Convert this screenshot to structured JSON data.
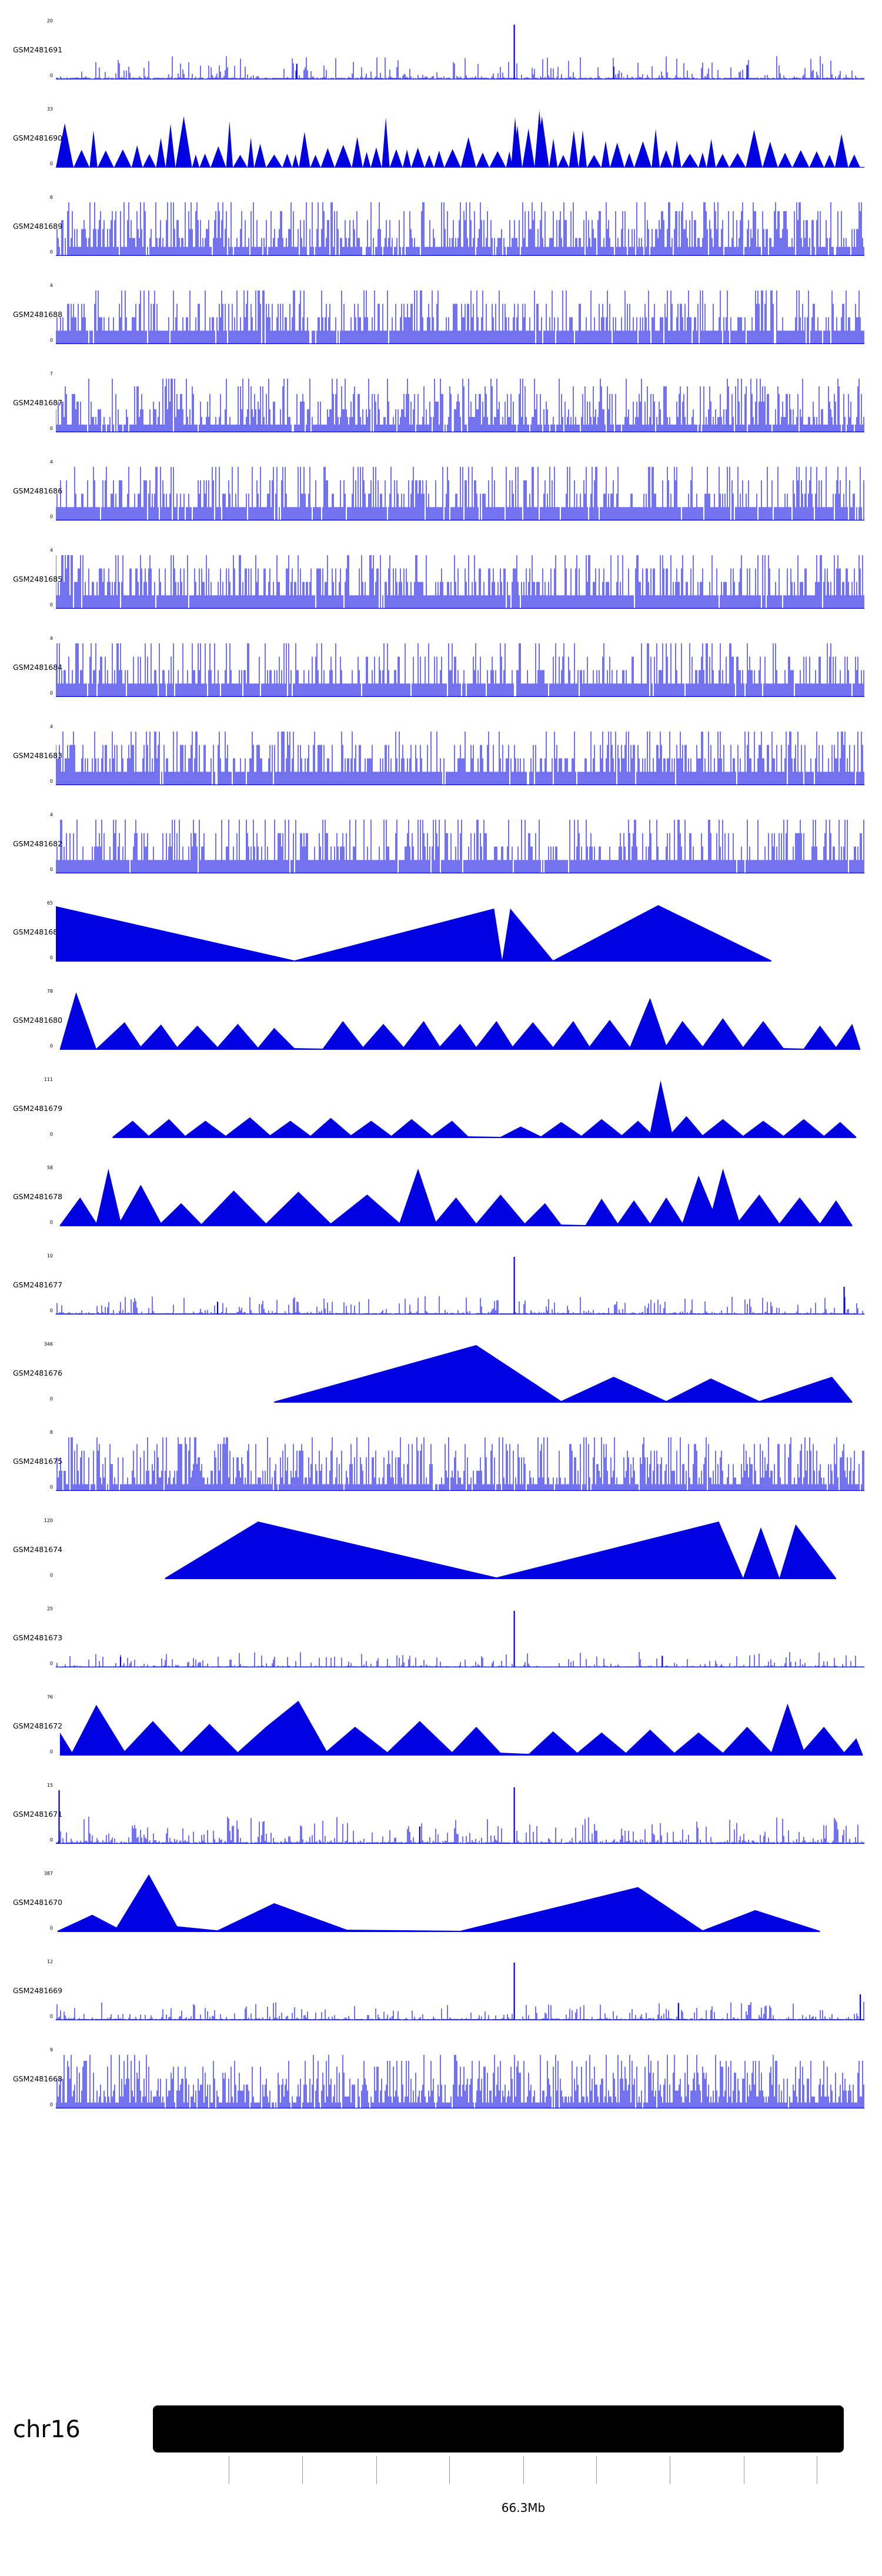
{
  "chart_data": {
    "type": "area",
    "description": "Genome browser signal tracks (coverage) for 24 GEO samples shown over chr16 near 66.3Mb",
    "signal_color": "#0000E0",
    "x_axis": {
      "chromosome": "chr16",
      "center_label": "66.3Mb"
    },
    "tracks": [
      {
        "label": "GSM2481691",
        "ymax": 20,
        "ymin": 0,
        "style": "dense",
        "seed": 101,
        "base": 0.025,
        "pow": 7,
        "hmax": 0.38,
        "zero": 0.15,
        "marks": [
          [
            0.567,
            0.95
          ],
          [
            0.298,
            0.27
          ],
          [
            0.69,
            0.22
          ],
          [
            0.855,
            0.25
          ]
        ]
      },
      {
        "label": "GSM2481690",
        "ymax": 33,
        "ymin": 0,
        "style": "sawtooth",
        "seed": 102,
        "hmin": 0.22,
        "wmin": 0.008,
        "wmax": 0.022,
        "extra": [
          [
            0.598,
            1.0,
            0.012
          ],
          [
            0.568,
            0.88,
            0.01
          ]
        ]
      },
      {
        "label": "GSM2481689",
        "ymax": 6,
        "ymin": 0,
        "style": "dense",
        "seed": 103,
        "levels": 6,
        "pow": 1.9,
        "zero": 0.05
      },
      {
        "label": "GSM2481688",
        "ymax": 4,
        "ymin": 0,
        "style": "dense",
        "seed": 104,
        "levels": 4,
        "pow": 2.4,
        "zero": 0.06
      },
      {
        "label": "GSM2481687",
        "ymax": 7,
        "ymin": 0,
        "style": "dense",
        "seed": 105,
        "levels": 7,
        "pow": 2.2,
        "zero": 0.06
      },
      {
        "label": "GSM2481686",
        "ymax": 4,
        "ymin": 0,
        "style": "dense",
        "seed": 106,
        "levels": 4,
        "pow": 2.6,
        "zero": 0.07
      },
      {
        "label": "GSM2481685",
        "ymax": 4,
        "ymin": 0,
        "style": "dense",
        "seed": 107,
        "levels": 4,
        "pow": 2.0,
        "zero": 0.03
      },
      {
        "label": "GSM2481684",
        "ymax": 4,
        "ymin": 0,
        "style": "dense",
        "seed": 108,
        "levels": 4,
        "pow": 2.4,
        "zero": 0.05
      },
      {
        "label": "GSM2481683",
        "ymax": 4,
        "ymin": 0,
        "style": "dense",
        "seed": 109,
        "levels": 4,
        "pow": 2.0,
        "zero": 0.04
      },
      {
        "label": "GSM2481682",
        "ymax": 4,
        "ymin": 0,
        "style": "dense",
        "seed": 110,
        "levels": 4,
        "pow": 2.3,
        "zero": 0.05
      },
      {
        "label": "GSM2481681",
        "ymax": 65,
        "ymin": 0,
        "style": "peaks",
        "seed": 111,
        "points": [
          [
            0.0,
            0.96
          ],
          [
            0.295,
            0.02
          ],
          [
            0.542,
            0.92
          ],
          [
            0.552,
            0.03
          ],
          [
            0.562,
            0.92
          ],
          [
            0.615,
            0.02
          ],
          [
            0.745,
            0.98
          ],
          [
            0.885,
            0.02
          ]
        ]
      },
      {
        "label": "GSM2481680",
        "ymax": 78,
        "ymin": 0,
        "style": "peaks",
        "seed": 112,
        "points": [
          [
            0.005,
            0.02
          ],
          [
            0.025,
            1.0
          ],
          [
            0.05,
            0.02
          ],
          [
            0.085,
            0.48
          ],
          [
            0.105,
            0.06
          ],
          [
            0.13,
            0.44
          ],
          [
            0.15,
            0.05
          ],
          [
            0.175,
            0.42
          ],
          [
            0.2,
            0.05
          ],
          [
            0.225,
            0.45
          ],
          [
            0.25,
            0.04
          ],
          [
            0.27,
            0.38
          ],
          [
            0.295,
            0.03
          ],
          [
            0.33,
            0.02
          ],
          [
            0.355,
            0.5
          ],
          [
            0.38,
            0.05
          ],
          [
            0.405,
            0.45
          ],
          [
            0.43,
            0.05
          ],
          [
            0.455,
            0.5
          ],
          [
            0.475,
            0.06
          ],
          [
            0.5,
            0.45
          ],
          [
            0.52,
            0.05
          ],
          [
            0.545,
            0.5
          ],
          [
            0.565,
            0.06
          ],
          [
            0.59,
            0.48
          ],
          [
            0.615,
            0.05
          ],
          [
            0.64,
            0.5
          ],
          [
            0.66,
            0.06
          ],
          [
            0.685,
            0.52
          ],
          [
            0.71,
            0.05
          ],
          [
            0.735,
            0.9
          ],
          [
            0.755,
            0.08
          ],
          [
            0.775,
            0.5
          ],
          [
            0.8,
            0.06
          ],
          [
            0.825,
            0.55
          ],
          [
            0.85,
            0.05
          ],
          [
            0.875,
            0.5
          ],
          [
            0.9,
            0.03
          ],
          [
            0.925,
            0.02
          ],
          [
            0.945,
            0.42
          ],
          [
            0.965,
            0.05
          ],
          [
            0.985,
            0.45
          ],
          [
            0.995,
            0.02
          ]
        ]
      },
      {
        "label": "GSM2481679",
        "ymax": 111,
        "ymin": 0,
        "style": "peaks",
        "seed": 113,
        "points": [
          [
            0.07,
            0.02
          ],
          [
            0.095,
            0.3
          ],
          [
            0.115,
            0.04
          ],
          [
            0.14,
            0.33
          ],
          [
            0.16,
            0.04
          ],
          [
            0.185,
            0.3
          ],
          [
            0.21,
            0.04
          ],
          [
            0.24,
            0.36
          ],
          [
            0.265,
            0.05
          ],
          [
            0.29,
            0.3
          ],
          [
            0.315,
            0.04
          ],
          [
            0.34,
            0.35
          ],
          [
            0.365,
            0.05
          ],
          [
            0.39,
            0.3
          ],
          [
            0.415,
            0.04
          ],
          [
            0.44,
            0.33
          ],
          [
            0.465,
            0.04
          ],
          [
            0.49,
            0.3
          ],
          [
            0.51,
            0.03
          ],
          [
            0.55,
            0.02
          ],
          [
            0.575,
            0.2
          ],
          [
            0.6,
            0.03
          ],
          [
            0.625,
            0.28
          ],
          [
            0.65,
            0.04
          ],
          [
            0.675,
            0.33
          ],
          [
            0.7,
            0.05
          ],
          [
            0.72,
            0.3
          ],
          [
            0.735,
            0.1
          ],
          [
            0.748,
            1.0
          ],
          [
            0.762,
            0.1
          ],
          [
            0.78,
            0.38
          ],
          [
            0.8,
            0.05
          ],
          [
            0.825,
            0.33
          ],
          [
            0.85,
            0.04
          ],
          [
            0.875,
            0.3
          ],
          [
            0.9,
            0.04
          ],
          [
            0.925,
            0.33
          ],
          [
            0.95,
            0.04
          ],
          [
            0.97,
            0.28
          ],
          [
            0.99,
            0.02
          ]
        ]
      },
      {
        "label": "GSM2481678",
        "ymax": 58,
        "ymin": 0,
        "style": "peaks",
        "seed": 114,
        "points": [
          [
            0.005,
            0.02
          ],
          [
            0.03,
            0.5
          ],
          [
            0.05,
            0.06
          ],
          [
            0.065,
            1.0
          ],
          [
            0.08,
            0.1
          ],
          [
            0.105,
            0.72
          ],
          [
            0.13,
            0.06
          ],
          [
            0.155,
            0.4
          ],
          [
            0.18,
            0.04
          ],
          [
            0.22,
            0.62
          ],
          [
            0.26,
            0.05
          ],
          [
            0.3,
            0.6
          ],
          [
            0.34,
            0.05
          ],
          [
            0.385,
            0.55
          ],
          [
            0.425,
            0.06
          ],
          [
            0.448,
            1.0
          ],
          [
            0.47,
            0.08
          ],
          [
            0.495,
            0.5
          ],
          [
            0.52,
            0.05
          ],
          [
            0.55,
            0.55
          ],
          [
            0.58,
            0.05
          ],
          [
            0.605,
            0.4
          ],
          [
            0.625,
            0.03
          ],
          [
            0.655,
            0.02
          ],
          [
            0.675,
            0.48
          ],
          [
            0.695,
            0.05
          ],
          [
            0.715,
            0.45
          ],
          [
            0.735,
            0.05
          ],
          [
            0.755,
            0.5
          ],
          [
            0.775,
            0.06
          ],
          [
            0.795,
            0.88
          ],
          [
            0.812,
            0.3
          ],
          [
            0.825,
            1.0
          ],
          [
            0.845,
            0.1
          ],
          [
            0.87,
            0.55
          ],
          [
            0.895,
            0.05
          ],
          [
            0.92,
            0.5
          ],
          [
            0.945,
            0.05
          ],
          [
            0.965,
            0.45
          ],
          [
            0.985,
            0.02
          ]
        ]
      },
      {
        "label": "GSM2481677",
        "ymax": 10,
        "ymin": 0,
        "style": "dense",
        "seed": 115,
        "base": 0.02,
        "pow": 7,
        "hmax": 0.3,
        "zero": 0.12,
        "marks": [
          [
            0.567,
            1.0
          ],
          [
            0.975,
            0.48
          ],
          [
            0.2,
            0.22
          ]
        ]
      },
      {
        "label": "GSM2481676",
        "ymax": 346,
        "ymin": 0,
        "style": "peaks",
        "seed": 116,
        "points": [
          [
            0.27,
            0.02
          ],
          [
            0.52,
            1.0
          ],
          [
            0.625,
            0.03
          ],
          [
            0.69,
            0.45
          ],
          [
            0.755,
            0.03
          ],
          [
            0.81,
            0.42
          ],
          [
            0.87,
            0.03
          ],
          [
            0.96,
            0.45
          ],
          [
            0.985,
            0.02
          ]
        ]
      },
      {
        "label": "GSM2481675",
        "ymax": 8,
        "ymin": 0,
        "style": "dense",
        "seed": 117,
        "levels": 8,
        "pow": 2.0,
        "zero": 0.05
      },
      {
        "label": "GSM2481674",
        "ymax": 120,
        "ymin": 0,
        "style": "peaks",
        "seed": 118,
        "points": [
          [
            0.135,
            0.02
          ],
          [
            0.25,
            1.0
          ],
          [
            0.545,
            0.03
          ],
          [
            0.82,
            1.0
          ],
          [
            0.85,
            0.02
          ],
          [
            0.872,
            0.9
          ],
          [
            0.895,
            0.02
          ],
          [
            0.915,
            0.95
          ],
          [
            0.965,
            0.02
          ]
        ]
      },
      {
        "label": "GSM2481673",
        "ymax": 25,
        "ymin": 0,
        "style": "dense",
        "seed": 119,
        "base": 0.015,
        "pow": 8,
        "hmax": 0.25,
        "zero": 0.2,
        "marks": [
          [
            0.567,
            0.98
          ],
          [
            0.08,
            0.18
          ],
          [
            0.75,
            0.2
          ]
        ]
      },
      {
        "label": "GSM2481672",
        "ymax": 76,
        "ymin": 0,
        "style": "peaks",
        "seed": 120,
        "points": [
          [
            0.005,
            0.4
          ],
          [
            0.02,
            0.06
          ],
          [
            0.05,
            0.88
          ],
          [
            0.085,
            0.08
          ],
          [
            0.12,
            0.6
          ],
          [
            0.155,
            0.06
          ],
          [
            0.19,
            0.55
          ],
          [
            0.225,
            0.06
          ],
          [
            0.26,
            0.5
          ],
          [
            0.3,
            0.95
          ],
          [
            0.335,
            0.08
          ],
          [
            0.37,
            0.5
          ],
          [
            0.41,
            0.06
          ],
          [
            0.45,
            0.6
          ],
          [
            0.49,
            0.06
          ],
          [
            0.52,
            0.5
          ],
          [
            0.55,
            0.05
          ],
          [
            0.585,
            0.03
          ],
          [
            0.615,
            0.42
          ],
          [
            0.645,
            0.05
          ],
          [
            0.675,
            0.4
          ],
          [
            0.705,
            0.05
          ],
          [
            0.735,
            0.45
          ],
          [
            0.765,
            0.05
          ],
          [
            0.795,
            0.4
          ],
          [
            0.825,
            0.05
          ],
          [
            0.855,
            0.5
          ],
          [
            0.885,
            0.06
          ],
          [
            0.905,
            0.9
          ],
          [
            0.925,
            0.1
          ],
          [
            0.95,
            0.5
          ],
          [
            0.975,
            0.06
          ],
          [
            0.99,
            0.3
          ],
          [
            0.998,
            0.02
          ]
        ]
      },
      {
        "label": "GSM2481671",
        "ymax": 15,
        "ymin": 0,
        "style": "dense",
        "seed": 121,
        "base": 0.025,
        "pow": 6,
        "hmax": 0.45,
        "zero": 0.1,
        "marks": [
          [
            0.004,
            0.93
          ],
          [
            0.567,
            0.98
          ],
          [
            0.45,
            0.3
          ]
        ]
      },
      {
        "label": "GSM2481670",
        "ymax": 387,
        "ymin": 0,
        "style": "peaks",
        "seed": 122,
        "points": [
          [
            0.002,
            0.02
          ],
          [
            0.045,
            0.3
          ],
          [
            0.075,
            0.08
          ],
          [
            0.115,
            1.0
          ],
          [
            0.15,
            0.1
          ],
          [
            0.2,
            0.03
          ],
          [
            0.27,
            0.5
          ],
          [
            0.36,
            0.04
          ],
          [
            0.5,
            0.02
          ],
          [
            0.72,
            0.78
          ],
          [
            0.8,
            0.03
          ],
          [
            0.865,
            0.38
          ],
          [
            0.945,
            0.02
          ]
        ]
      },
      {
        "label": "GSM2481669",
        "ymax": 12,
        "ymin": 0,
        "style": "dense",
        "seed": 123,
        "base": 0.02,
        "pow": 7,
        "hmax": 0.3,
        "zero": 0.12,
        "marks": [
          [
            0.567,
            1.0
          ],
          [
            0.995,
            0.45
          ],
          [
            0.77,
            0.3
          ]
        ]
      },
      {
        "label": "GSM2481668",
        "ymax": 9,
        "ymin": 0,
        "style": "dense",
        "seed": 124,
        "levels": 9,
        "pow": 1.8,
        "zero": 0.04
      }
    ]
  },
  "ideogram": {
    "chromosome": "chr16",
    "position_label": "66.3Mb",
    "bar_color": "#000000",
    "ticks": [
      0.11,
      0.216,
      0.323,
      0.429,
      0.536,
      0.642,
      0.748,
      0.855,
      0.961
    ],
    "label_tick": 0.536
  }
}
